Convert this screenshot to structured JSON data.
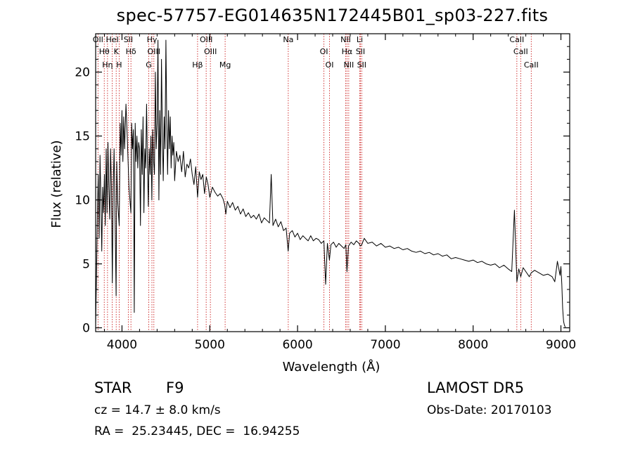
{
  "header": {
    "title": "spec-57757-EG014635N172445B01_sp03-227.fits"
  },
  "info": {
    "object_class": "STAR",
    "subclass": "F9",
    "survey": "LAMOST DR5",
    "redshift_text": "cz = 14.7 ± 8.0 km/s",
    "obs_date": "Obs-Date: 20170103",
    "coords": "RA =  25.23445, DEC =  16.94255"
  },
  "chart_data": {
    "type": "line",
    "xlabel": "Wavelength (Å)",
    "ylabel": "Flux (relative)",
    "xlim": [
      3700,
      9100
    ],
    "ylim": [
      -0.3,
      23
    ],
    "xticks": [
      4000,
      5000,
      6000,
      7000,
      8000,
      9000
    ],
    "yticks": [
      0,
      5,
      10,
      15,
      20
    ],
    "colors": {
      "line": "#000000",
      "marker": "#cc2222"
    },
    "series": [
      {
        "x": [
          3700,
          3710,
          3720,
          3730,
          3740,
          3750,
          3760,
          3770,
          3780,
          3790,
          3800,
          3810,
          3820,
          3830,
          3840,
          3850,
          3860,
          3870,
          3880,
          3890,
          3900,
          3910,
          3920,
          3933,
          3940,
          3950,
          3968,
          3980,
          3990,
          4000,
          4010,
          4020,
          4030,
          4045,
          4060,
          4080,
          4101,
          4110,
          4120,
          4130,
          4140,
          4150,
          4160,
          4170,
          4180,
          4190,
          4200,
          4210,
          4220,
          4230,
          4240,
          4250,
          4260,
          4270,
          4280,
          4290,
          4300,
          4310,
          4320,
          4330,
          4340,
          4350,
          4360,
          4370,
          4380,
          4390,
          4400,
          4410,
          4420,
          4430,
          4440,
          4450,
          4460,
          4470,
          4480,
          4490,
          4500,
          4510,
          4520,
          4530,
          4540,
          4550,
          4560,
          4570,
          4580,
          4590,
          4600,
          4620,
          4640,
          4660,
          4680,
          4700,
          4720,
          4740,
          4760,
          4780,
          4800,
          4820,
          4840,
          4861,
          4880,
          4900,
          4920,
          4940,
          4960,
          4980,
          5000,
          5030,
          5060,
          5090,
          5120,
          5150,
          5170,
          5183,
          5200,
          5230,
          5260,
          5290,
          5320,
          5350,
          5380,
          5410,
          5440,
          5470,
          5500,
          5530,
          5560,
          5590,
          5620,
          5650,
          5680,
          5700,
          5720,
          5750,
          5780,
          5810,
          5840,
          5870,
          5893,
          5910,
          5940,
          5970,
          6000,
          6030,
          6060,
          6090,
          6120,
          6150,
          6180,
          6210,
          6240,
          6270,
          6300,
          6320,
          6340,
          6363,
          6380,
          6410,
          6440,
          6470,
          6500,
          6530,
          6550,
          6563,
          6580,
          6610,
          6640,
          6670,
          6700,
          6716,
          6731,
          6760,
          6800,
          6850,
          6900,
          6950,
          7000,
          7050,
          7100,
          7150,
          7200,
          7250,
          7300,
          7350,
          7400,
          7450,
          7500,
          7550,
          7600,
          7650,
          7700,
          7750,
          7800,
          7850,
          7900,
          7950,
          8000,
          8050,
          8100,
          8150,
          8200,
          8250,
          8300,
          8350,
          8400,
          8440,
          8470,
          8498,
          8520,
          8542,
          8570,
          8600,
          8640,
          8662,
          8700,
          8750,
          8800,
          8850,
          8900,
          8930,
          8960,
          8990,
          9000,
          9010,
          9020,
          9030,
          9040,
          9050
        ],
        "y": [
          0.3,
          4.0,
          9.0,
          12.0,
          7.0,
          13.5,
          10.0,
          6.0,
          11.0,
          9.0,
          12.0,
          8.0,
          14.0,
          9.0,
          14.5,
          11.0,
          8.5,
          14.0,
          11.0,
          3.5,
          11.0,
          14.0,
          9.0,
          2.5,
          13.0,
          10.0,
          8.0,
          16.0,
          13.5,
          17.0,
          13.0,
          16.5,
          14.0,
          17.5,
          15.0,
          11.0,
          9.0,
          16.0,
          14.0,
          15.5,
          1.2,
          16.0,
          13.0,
          15.0,
          12.5,
          14.5,
          14.0,
          8.0,
          15.5,
          12.0,
          16.5,
          9.0,
          14.0,
          12.5,
          17.5,
          13.0,
          9.5,
          14.0,
          12.0,
          15.0,
          10.0,
          15.5,
          13.0,
          12.0,
          20.0,
          14.0,
          16.0,
          22.5,
          10.0,
          17.0,
          12.0,
          21.0,
          15.0,
          11.5,
          16.5,
          14.0,
          22.5,
          16.0,
          12.0,
          17.0,
          14.0,
          16.5,
          12.5,
          15.0,
          13.5,
          14.5,
          11.5,
          13.8,
          13.0,
          13.5,
          12.2,
          13.8,
          11.8,
          12.8,
          12.5,
          13.2,
          12.0,
          11.2,
          12.6,
          10.2,
          12.2,
          11.6,
          12.0,
          10.5,
          11.8,
          11.2,
          10.2,
          11.0,
          10.6,
          10.3,
          10.5,
          10.1,
          9.6,
          8.9,
          9.9,
          9.4,
          9.8,
          9.2,
          9.5,
          8.9,
          9.3,
          8.7,
          9.0,
          8.6,
          8.8,
          8.5,
          8.9,
          8.2,
          8.6,
          8.4,
          8.2,
          12.0,
          8.0,
          8.5,
          7.9,
          8.3,
          7.6,
          7.8,
          6.0,
          7.4,
          7.6,
          7.1,
          7.4,
          6.9,
          7.2,
          7.0,
          6.8,
          7.2,
          6.8,
          7.0,
          6.9,
          6.6,
          6.8,
          3.4,
          6.6,
          5.3,
          6.5,
          6.7,
          6.3,
          6.6,
          6.4,
          6.2,
          6.5,
          4.4,
          6.4,
          6.7,
          6.5,
          6.8,
          6.6,
          6.4,
          6.5,
          7.0,
          6.6,
          6.7,
          6.4,
          6.6,
          6.3,
          6.4,
          6.2,
          6.3,
          6.1,
          6.2,
          6.0,
          5.9,
          6.0,
          5.8,
          5.9,
          5.7,
          5.8,
          5.6,
          5.7,
          5.4,
          5.5,
          5.4,
          5.3,
          5.2,
          5.3,
          5.1,
          5.2,
          5.0,
          4.9,
          5.0,
          4.7,
          4.9,
          4.6,
          4.4,
          9.2,
          3.6,
          4.6,
          4.0,
          4.7,
          4.4,
          4.0,
          4.3,
          4.5,
          4.3,
          4.1,
          4.2,
          4.0,
          3.6,
          5.2,
          4.1,
          4.8,
          3.4,
          1.5,
          0.5,
          0.2,
          0.05
        ]
      }
    ],
    "lines": [
      {
        "label": "OII",
        "x": 3727
      },
      {
        "label": "Hθ",
        "x": 3798
      },
      {
        "label": "Hη",
        "x": 3835
      },
      {
        "label": "HeI",
        "x": 3889
      },
      {
        "label": "K",
        "x": 3934
      },
      {
        "label": "H",
        "x": 3968
      },
      {
        "label": "SII",
        "x": 4072
      },
      {
        "label": "Hδ",
        "x": 4102
      },
      {
        "label": "G",
        "x": 4305
      },
      {
        "label": "Hγ",
        "x": 4341
      },
      {
        "label": "OIII",
        "x": 4363
      },
      {
        "label": "Hβ",
        "x": 4861
      },
      {
        "label": "OIII",
        "x": 4959
      },
      {
        "label": "OIII",
        "x": 5007
      },
      {
        "label": "Mg",
        "x": 5175
      },
      {
        "label": "Na",
        "x": 5894
      },
      {
        "label": "OI",
        "x": 6300
      },
      {
        "label": "OI",
        "x": 6364
      },
      {
        "label": "NII",
        "x": 6548
      },
      {
        "label": "Hα",
        "x": 6563
      },
      {
        "label": "NII",
        "x": 6583
      },
      {
        "label": "Li",
        "x": 6708
      },
      {
        "label": "SII",
        "x": 6716
      },
      {
        "label": "SII",
        "x": 6731
      },
      {
        "label": "CaII",
        "x": 8498
      },
      {
        "label": "CaII",
        "x": 8542
      },
      {
        "label": "CaII",
        "x": 8662
      }
    ]
  }
}
